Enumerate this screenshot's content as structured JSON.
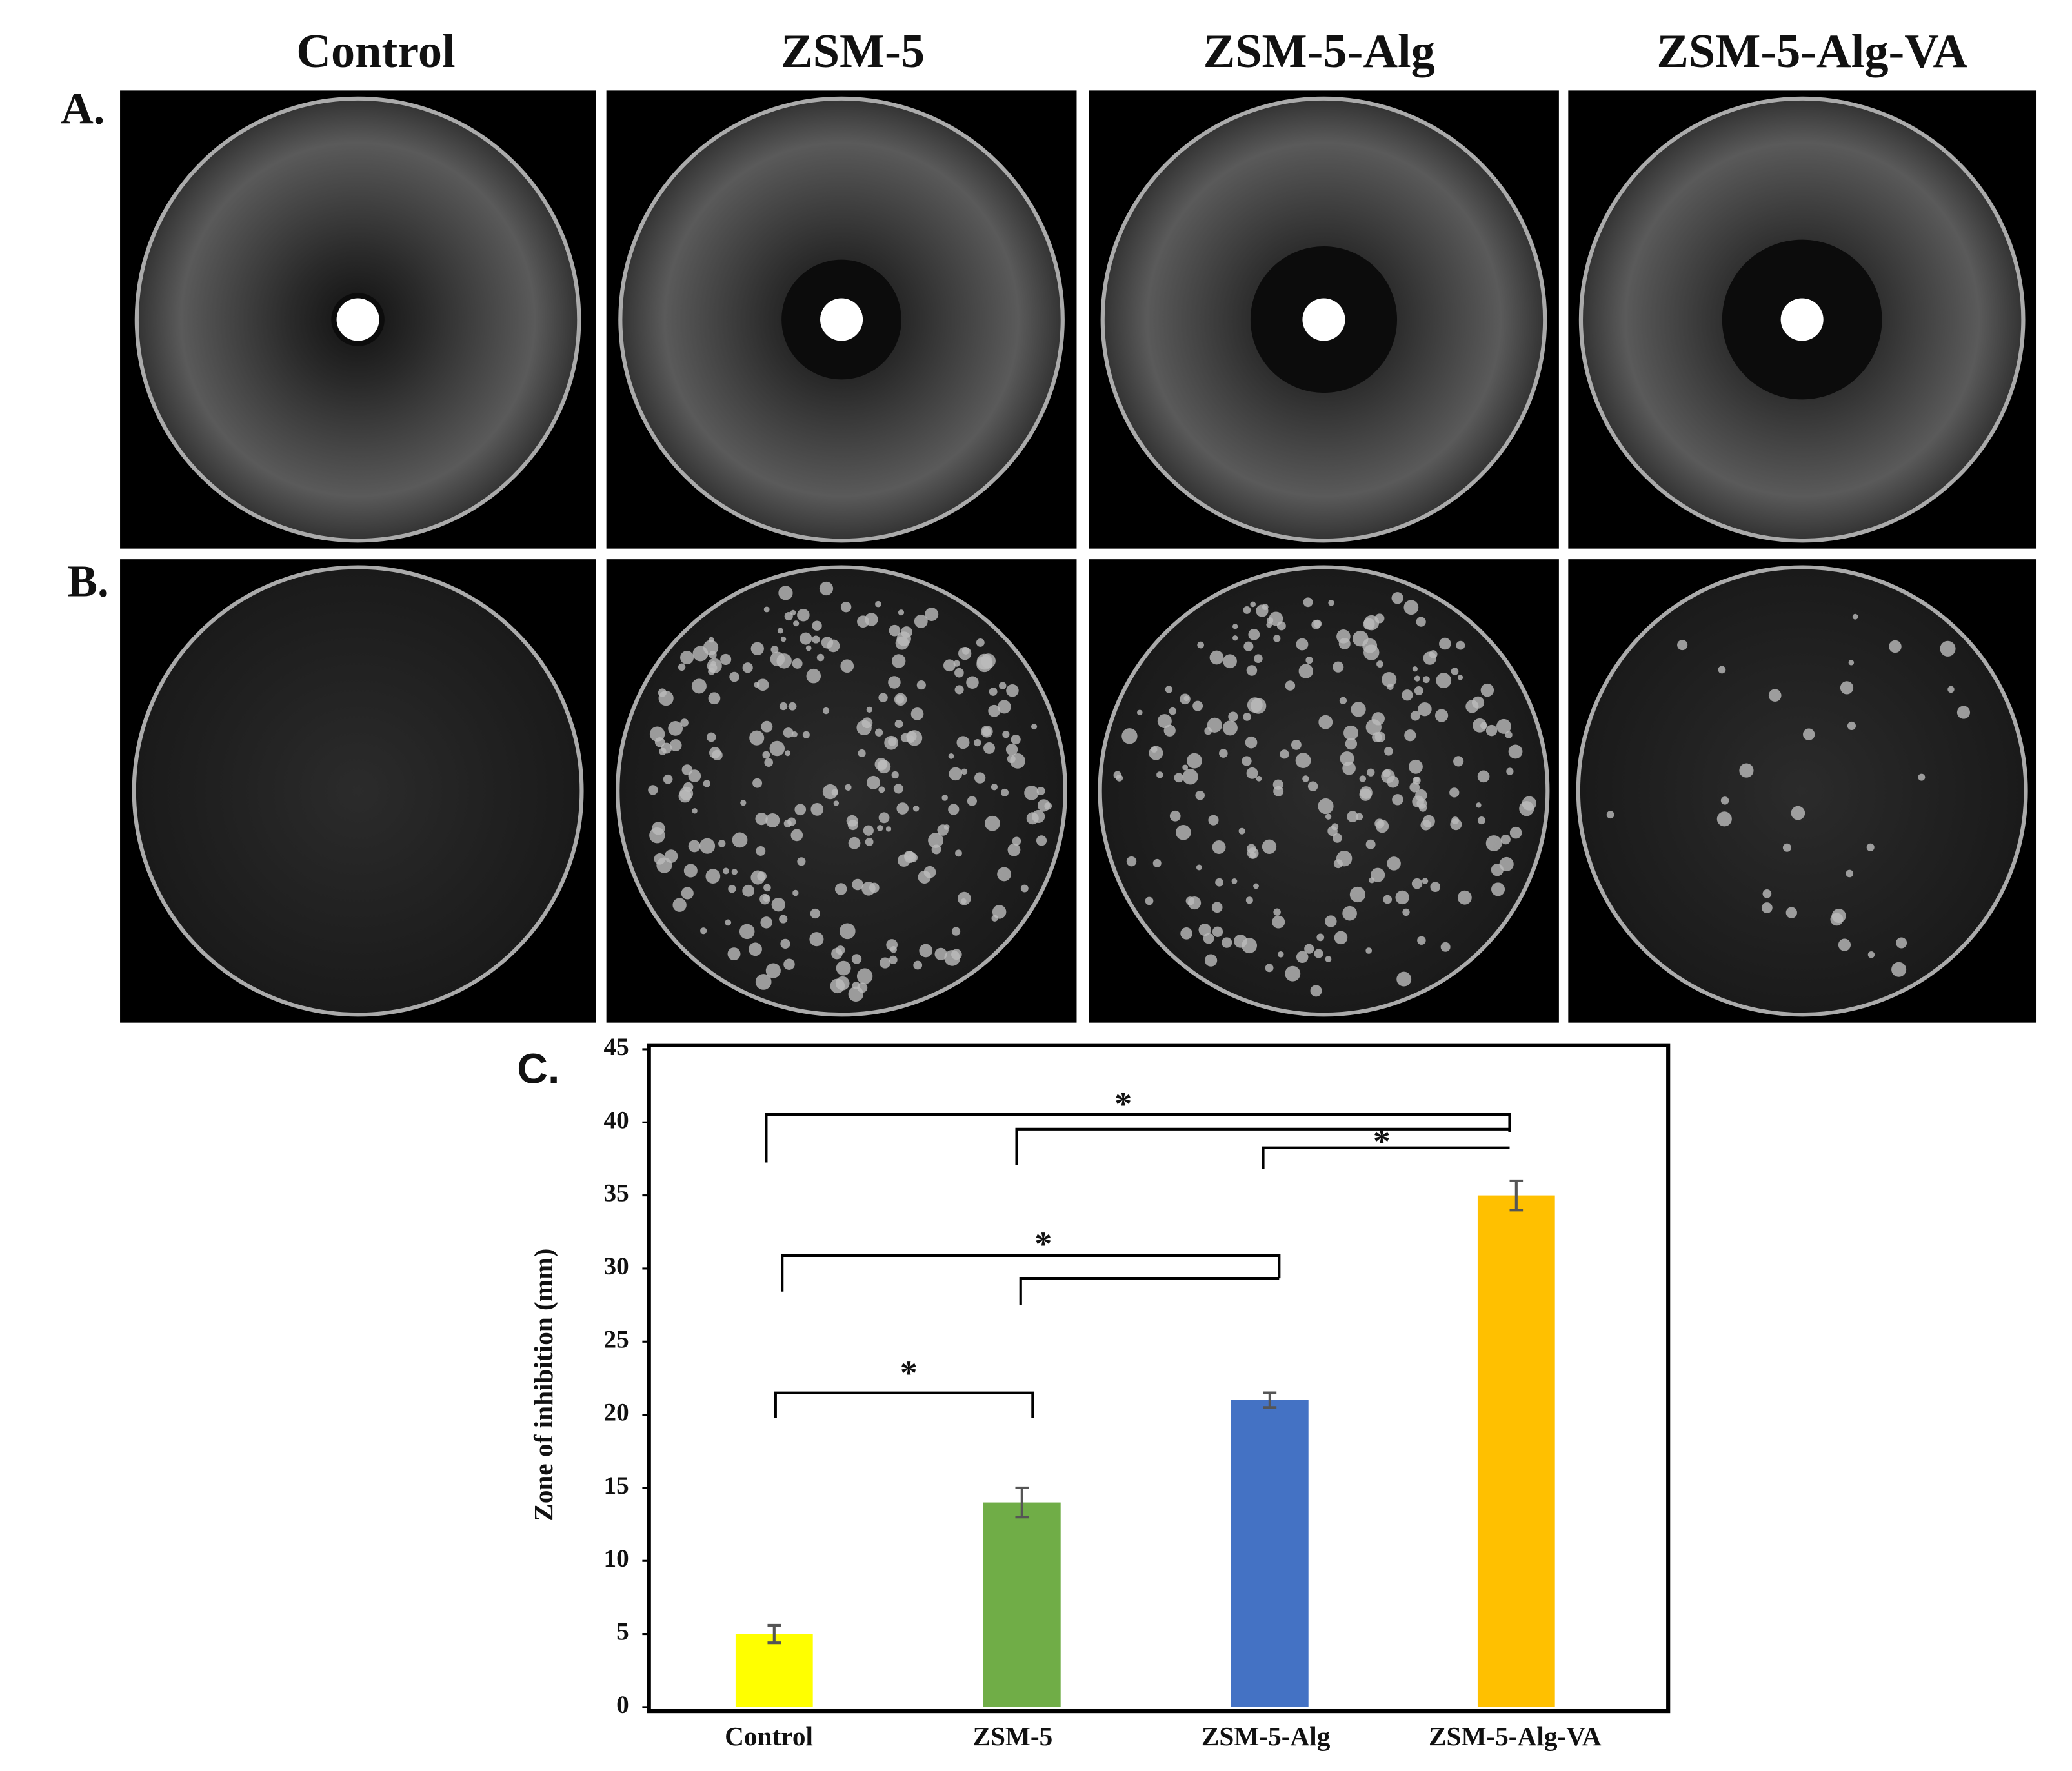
{
  "column_headers": [
    "Control",
    "ZSM-5",
    "ZSM-5-Alg",
    "ZSM-5-Alg-VA"
  ],
  "row_labels": [
    "A.",
    "B."
  ],
  "chart_data": {
    "type": "bar",
    "panel_label": "C.",
    "y_label": "Zone of inhibition (mm)",
    "categories": [
      "Control",
      "ZSM-5",
      "ZSM-5-Alg",
      "ZSM-5-Alg-VA"
    ],
    "values": [
      5,
      14,
      21,
      35
    ],
    "errors": [
      0.6,
      1.0,
      0.5,
      1.0
    ],
    "colors": [
      "#ffff00",
      "#70ad47",
      "#4472c4",
      "#ffc000"
    ],
    "ylim": [
      0,
      45
    ],
    "yticks": [
      0,
      5,
      10,
      15,
      20,
      25,
      30,
      35,
      40,
      45
    ],
    "annotations": [
      "*",
      "*",
      "*",
      "*"
    ]
  }
}
